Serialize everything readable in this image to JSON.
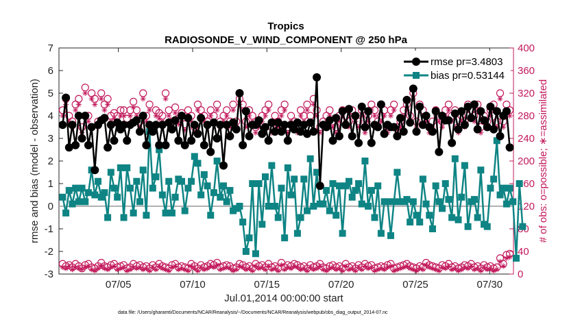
{
  "chart_data": {
    "type": "line",
    "title": "Tropics",
    "subtitle": "RADIOSONDE_V_WIND_COMPONENT @ 250 hPa",
    "xlabel": "Jul.01,2014 00:00:00 start",
    "ylabel": "rmse and bias (model - observation)",
    "y2label": "# of obs: o=possible; ∗=assimilated",
    "xlim": [
      1,
      31.6
    ],
    "ylim": [
      -3,
      7
    ],
    "y2lim": [
      0,
      400
    ],
    "xticks": [
      5,
      10,
      15,
      20,
      25,
      30
    ],
    "xtick_labels": [
      "07/05",
      "07/10",
      "07/15",
      "07/20",
      "07/25",
      "07/30"
    ],
    "yticks": [
      -3,
      -2,
      -1,
      0,
      1,
      2,
      3,
      4,
      5,
      6,
      7
    ],
    "y2ticks": [
      0,
      40,
      80,
      120,
      160,
      200,
      240,
      280,
      320,
      360,
      400
    ],
    "legend_position": "top-right",
    "footnote": "data file: /Users/gharamti/Documents/NCAR/Reanalysis/~/Documents/NCAR/Reanalysis/webpub/obs_diag_output_2014-07.nc",
    "series": [
      {
        "name": "rmse pr=3.4803",
        "color": "#000000",
        "axis": "left",
        "values": [
          3.6,
          4.8,
          2.6,
          3.6,
          2.7,
          4.0,
          3.0,
          4.0,
          2.7,
          3.5,
          1.6,
          3.6,
          3.8,
          3.9,
          2.6,
          3.6,
          2.9,
          3.7,
          3.4,
          3.6,
          2.9,
          3.6,
          3.7,
          3.8,
          3.3,
          4.0,
          2.7,
          3.6,
          3.3,
          3.6,
          2.7,
          3.6,
          2.7,
          3.7,
          3.4,
          3.8,
          2.9,
          4.0,
          2.7,
          3.9,
          2.9,
          3.6,
          3.2,
          3.9,
          2.7,
          3.6,
          2.4,
          3.7,
          3.0,
          3.6,
          1.8,
          3.6,
          3.1,
          3.7,
          3.4,
          5.0,
          2.7,
          4.2,
          3.1,
          3.6,
          3.6,
          3.8,
          3.2,
          3.5,
          2.9,
          3.7,
          3.3,
          3.7,
          3.3,
          3.6,
          2.9,
          3.6,
          3.4,
          3.7,
          3.3,
          3.6,
          3.2,
          3.7,
          3.3,
          5.7,
          0.9,
          3.6,
          3.5,
          3.8,
          2.9,
          3.9,
          3.1,
          4.2,
          3.6,
          4.3,
          3.1,
          4.0,
          2.8,
          4.4,
          3.5,
          4.2,
          2.8,
          3.6,
          3.5,
          4.5,
          3.2,
          3.6,
          3.5,
          3.5,
          3.1,
          3.9,
          3.3,
          4.7,
          3.7,
          5.2,
          3.3,
          4.4,
          3.6,
          4.0,
          3.5,
          3.3,
          4.2,
          2.4,
          4.0,
          3.8,
          3.8,
          2.8,
          4.1,
          3.4,
          4.2,
          3.6,
          4.4,
          3.9,
          4.5,
          3.4,
          4.2,
          3.8,
          3.5,
          4.4,
          3.4,
          4.2,
          3.1,
          4.0,
          4.2,
          2.6
        ]
      },
      {
        "name": "bias pr=0.53144",
        "color": "#0f8484",
        "axis": "left",
        "values": [
          0.4,
          -0.3,
          0.7,
          0.1,
          0.8,
          0.2,
          0.8,
          0.2,
          0.6,
          1.6,
          0.5,
          1.1,
          0.4,
          0.6,
          -0.5,
          1.5,
          0.8,
          0.4,
          1.7,
          -0.5,
          1.7,
          0.8,
          -0.3,
          1.1,
          0.2,
          1.6,
          -0.4,
          3.3,
          0.8,
          1.3,
          2.5,
          0.5,
          -0.3,
          1.1,
          -0.3,
          0.4,
          1.2,
          1.1,
          -0.2,
          0.8,
          1.1,
          2.2,
          1.9,
          0.5,
          1.4,
          0.9,
          -0.4,
          0.6,
          2.0,
          0.4,
          0.9,
          0.2,
          0.7,
          -0.2,
          -0.1,
          0.0,
          -0.7,
          -2.0,
          -1.4,
          1.0,
          -2.1,
          1.0,
          -0.8,
          1.3,
          0.0,
          1.8,
          0.0,
          -0.5,
          0.8,
          -1.4,
          1.7,
          0.5,
          1.2,
          -1.2,
          -0.5,
          1.2,
          -0.2,
          2.1,
          0.0,
          1.5,
          0.1,
          0.1,
          0.7,
          -0.2,
          1.0,
          -0.4,
          0.9,
          -1.2,
          0.9,
          1.1,
          0.4,
          0.7,
          1.0,
          0.1,
          2.0,
          0.0,
          0.7,
          -0.5,
          0.9,
          -1.2,
          0.2,
          0.2,
          -1.3,
          0.2,
          1.5,
          0.2,
          0.2,
          0.3,
          -0.7,
          0.2,
          -0.4,
          -0.7,
          1.2,
          0.1,
          -0.4,
          -1.0,
          0.9,
          0.2,
          -0.1,
          1.0,
          0.3,
          -0.5,
          2.1,
          -0.6,
          0.4,
          1.8,
          -0.9,
          0.2,
          0.3,
          -0.5,
          1.6,
          -0.8,
          -0.9,
          0.8,
          1.2,
          2.9,
          0.5,
          0.8,
          0.1,
          0.8,
          0.2,
          -2.3,
          1.0,
          -0.9
        ]
      },
      {
        "name": "possible",
        "color": "#c2185b",
        "axis": "right",
        "marker": "circle",
        "values": [
          18,
          14,
          16,
          12,
          18,
          14,
          10,
          16,
          18,
          12,
          10,
          14,
          20,
          14,
          12,
          16,
          18,
          12,
          14,
          16,
          10,
          12,
          18,
          14,
          16,
          12,
          14,
          10,
          16,
          12,
          18,
          14,
          12,
          10,
          16,
          18,
          12,
          14,
          12,
          10,
          18,
          14,
          10,
          16,
          12,
          14,
          18,
          16,
          20,
          12,
          14,
          16,
          14,
          10,
          12,
          18,
          16,
          12,
          14,
          10,
          18,
          14,
          16,
          12,
          18,
          12,
          14,
          10,
          20,
          12,
          16,
          14,
          18,
          16,
          12,
          14,
          10,
          16,
          12,
          14,
          18,
          12,
          10,
          14,
          16,
          12,
          14,
          10,
          18,
          12,
          14,
          10,
          16,
          12,
          18,
          14,
          16,
          10,
          12,
          14,
          12,
          16,
          18,
          10,
          12,
          14,
          16,
          18,
          14,
          12,
          10,
          14,
          12,
          20,
          16,
          14,
          12,
          10,
          16,
          14,
          18,
          12,
          14,
          10,
          12,
          16,
          14,
          18,
          12,
          14,
          10,
          16,
          12,
          14,
          10,
          12,
          28,
          18,
          34,
          36
        ],
        "values2": [
          290,
          310,
          280,
          270,
          300,
          310,
          260,
          330,
          280,
          320,
          310,
          270,
          320,
          300,
          310,
          280,
          285,
          280,
          290,
          290,
          275,
          290,
          305,
          290,
          270,
          320,
          280,
          300,
          260,
          290,
          285,
          280,
          320,
          290,
          270,
          295,
          275,
          285,
          265,
          290,
          280,
          260,
          300,
          290,
          280,
          270,
          290,
          280,
          300,
          270,
          280,
          290,
          270,
          300,
          270,
          310,
          300,
          270,
          290,
          280,
          260,
          270,
          280,
          290,
          300,
          260,
          280,
          270,
          290,
          300,
          260,
          280,
          270,
          260,
          290,
          280,
          300,
          280,
          310,
          290,
          260,
          270,
          280,
          290,
          270,
          260,
          280,
          290,
          280,
          270,
          290,
          280,
          270,
          290,
          260,
          280,
          300,
          290,
          270,
          280,
          290,
          260,
          290,
          300,
          260,
          270,
          290,
          300,
          280,
          320,
          270,
          300,
          290,
          280,
          260,
          270,
          290,
          280,
          270,
          290,
          300,
          280,
          290,
          260,
          280,
          270,
          300,
          290,
          280,
          300,
          260,
          280,
          270,
          290,
          300,
          270,
          320,
          270,
          300,
          290
        ]
      },
      {
        "name": "assimilated",
        "color": "#c2185b",
        "axis": "right",
        "marker": "asterisk",
        "values": [
          12,
          10,
          14,
          8,
          12,
          10,
          8,
          12,
          14,
          8,
          6,
          10,
          14,
          10,
          8,
          12,
          14,
          8,
          10,
          12,
          6,
          8,
          12,
          10,
          12,
          8,
          10,
          6,
          12,
          8,
          14,
          10,
          8,
          6,
          12,
          14,
          8,
          10,
          8,
          6,
          14,
          10,
          6,
          12,
          8,
          10,
          14,
          12,
          16,
          8,
          10,
          12,
          10,
          6,
          8,
          14,
          12,
          8,
          10,
          6,
          14,
          10,
          12,
          8,
          14,
          8,
          10,
          6,
          16,
          8,
          12,
          10,
          14,
          12,
          8,
          10,
          6,
          12,
          8,
          10,
          14,
          8,
          6,
          10,
          12,
          8,
          10,
          6,
          14,
          8,
          10,
          6,
          12,
          8,
          14,
          10,
          12,
          6,
          8,
          10,
          8,
          12,
          14,
          6,
          8,
          10,
          12,
          14,
          10,
          8,
          6,
          10,
          8,
          16,
          12,
          10,
          8,
          6,
          12,
          10,
          14,
          8,
          10,
          6,
          8,
          12,
          10,
          14,
          8,
          10,
          6,
          12,
          8,
          10,
          6,
          8,
          22,
          14,
          28,
          30
        ],
        "values2": [
          280,
          300,
          270,
          260,
          290,
          300,
          250,
          320,
          270,
          310,
          300,
          260,
          310,
          290,
          300,
          270,
          275,
          270,
          280,
          280,
          265,
          280,
          295,
          280,
          260,
          310,
          270,
          290,
          250,
          280,
          275,
          270,
          310,
          280,
          260,
          285,
          265,
          275,
          255,
          280,
          270,
          250,
          290,
          280,
          270,
          260,
          280,
          270,
          290,
          260,
          270,
          280,
          260,
          290,
          260,
          300,
          290,
          260,
          280,
          270,
          250,
          260,
          270,
          280,
          290,
          250,
          270,
          260,
          280,
          290,
          250,
          270,
          260,
          250,
          280,
          270,
          290,
          270,
          300,
          280,
          250,
          260,
          270,
          280,
          260,
          250,
          270,
          280,
          270,
          260,
          280,
          270,
          260,
          280,
          250,
          270,
          290,
          280,
          260,
          270,
          280,
          250,
          280,
          290,
          250,
          260,
          280,
          290,
          270,
          310,
          260,
          290,
          280,
          270,
          250,
          260,
          280,
          270,
          260,
          280,
          290,
          270,
          280,
          250,
          270,
          260,
          290,
          280,
          270,
          290,
          250,
          270,
          260,
          280,
          290,
          260,
          310,
          260,
          290,
          280
        ]
      }
    ]
  }
}
